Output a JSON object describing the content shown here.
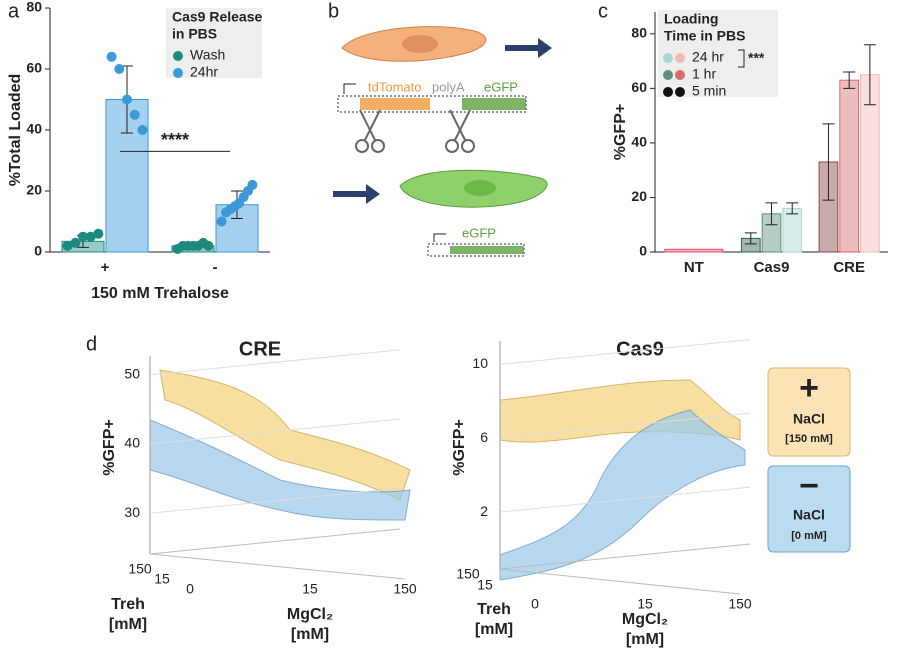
{
  "panels": [
    "a",
    "b",
    "c",
    "d"
  ],
  "chart_data": [
    {
      "type": "bar",
      "ylabel": "%Total Loaded",
      "xlabel": "150 mM Trehalose",
      "categories": [
        "+",
        "-"
      ],
      "ylim": [
        0,
        80
      ],
      "yticks": [
        0,
        20,
        40,
        60,
        80
      ],
      "legend_title": [
        "Cas9 Release",
        "in PBS"
      ],
      "annotation": "****",
      "series": [
        {
          "name": "Wash",
          "color": "#1d8a80",
          "values": [
            3.5,
            2
          ],
          "errors": [
            2,
            1
          ],
          "points": [
            [
              2,
              3,
              5,
              5,
              6
            ],
            [
              1,
              2,
              2,
              2,
              2,
              3,
              2
            ]
          ]
        },
        {
          "name": "24hr",
          "color": "#3a9ad9",
          "values": [
            50,
            15.5
          ],
          "errors": [
            11,
            4.5
          ],
          "points": [
            [
              64,
              60,
              50,
              45,
              40
            ],
            [
              10,
              13,
              14,
              15,
              16,
              18,
              20,
              22
            ]
          ]
        }
      ]
    },
    {
      "type": "bar",
      "ylabel": "%GFP+",
      "categories": [
        "NT",
        "Cas9",
        "CRE"
      ],
      "ylim": [
        0,
        88
      ],
      "yticks": [
        0,
        20,
        40,
        60,
        80
      ],
      "legend_title": [
        "Loading",
        "Time in PBS"
      ],
      "annotation": "***",
      "series": [
        {
          "name": "5 min",
          "colors": [
            "#e84a6b",
            "#2f5f55",
            "#8a4545"
          ],
          "values": [
            1,
            5,
            33
          ],
          "errors": [
            null,
            2,
            14
          ]
        },
        {
          "name": "1 hr",
          "colors": [
            "#e84a6b",
            "#5e8f80",
            "#d86a6a"
          ],
          "values": [
            null,
            14,
            63
          ],
          "errors": [
            null,
            4,
            3
          ]
        },
        {
          "name": "24 hr",
          "colors": [
            "#e84a6b",
            "#a8d8d0",
            "#f2b8b8"
          ],
          "values": [
            null,
            16,
            65
          ],
          "errors": [
            null,
            2,
            11
          ]
        }
      ]
    },
    {
      "type": "surface3d",
      "title": "CRE",
      "zlabel": "%GFP+",
      "zlim": [
        27,
        52
      ],
      "zticks": [
        30,
        40,
        50
      ],
      "xlabel": [
        "MgCl₂",
        "[mM]"
      ],
      "xticks": [
        0,
        15,
        150
      ],
      "ylabel": [
        "Treh",
        "[mM]"
      ],
      "yticks": [
        150,
        15
      ]
    },
    {
      "type": "surface3d",
      "title": "Cas9",
      "zlabel": "%GFP+",
      "zlim": [
        0,
        11
      ],
      "zticks": [
        2,
        6,
        10
      ],
      "xlabel": [
        "MgCl₂",
        "[mM]"
      ],
      "xticks": [
        0,
        15,
        150
      ],
      "ylabel": [
        "Treh",
        "[mM]"
      ],
      "yticks": [
        150,
        15
      ]
    }
  ],
  "diagram": {
    "construct": [
      "tdTomato",
      "polyA",
      "eGFP"
    ],
    "result": "eGFP"
  },
  "nacl_legend": [
    {
      "sign": "+",
      "label": "NaCl",
      "conc": "[150 mM]"
    },
    {
      "sign": "−",
      "label": "NaCl",
      "conc": "[0 mM]"
    }
  ]
}
